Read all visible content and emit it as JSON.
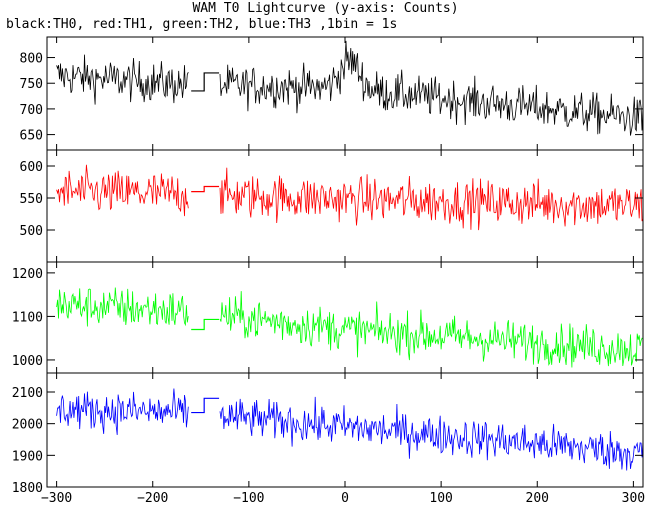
{
  "chart_data": {
    "type": "line",
    "title": "WAM T0 Lightcurve (y-axis: Counts)",
    "subtitle": "black:TH0, red:TH1, green:TH2, blue:TH3 ,1bin = 1s",
    "x_range": [
      -310,
      310
    ],
    "x_ticks": [
      -300,
      -200,
      -100,
      0,
      100,
      200,
      300
    ],
    "gap": {
      "from": -163,
      "to": -130
    },
    "series": [
      {
        "name": "TH0",
        "color": "#000000",
        "ylim": [
          620,
          840
        ],
        "y_ticks": [
          650,
          700,
          750,
          800
        ],
        "trend": [
          [
            -300,
            765
          ],
          [
            -170,
            748
          ],
          [
            0,
            740
          ],
          [
            300,
            683
          ]
        ],
        "gap_levels": [
          735,
          770
        ],
        "noise": 28,
        "bump": {
          "x": 5,
          "height": 55,
          "width": 10
        }
      },
      {
        "name": "TH1",
        "color": "#ff0000",
        "ylim": [
          450,
          625
        ],
        "y_ticks": [
          500,
          550,
          600
        ],
        "trend": [
          [
            -300,
            560
          ],
          [
            -170,
            556
          ],
          [
            0,
            548
          ],
          [
            300,
            538
          ]
        ],
        "gap_levels": [
          560,
          568
        ],
        "noise": 25
      },
      {
        "name": "TH2",
        "color": "#00ff00",
        "ylim": [
          970,
          1225
        ],
        "y_ticks": [
          1000,
          1100,
          1200
        ],
        "trend": [
          [
            -300,
            1128
          ],
          [
            -170,
            1112
          ],
          [
            0,
            1070
          ],
          [
            300,
            1025
          ]
        ],
        "gap_levels": [
          1070,
          1093
        ],
        "noise": 34
      },
      {
        "name": "TH3",
        "color": "#0000ff",
        "ylim": [
          1800,
          2160
        ],
        "y_ticks": [
          1800,
          1900,
          2000,
          2100
        ],
        "trend": [
          [
            -300,
            2045
          ],
          [
            -170,
            2035
          ],
          [
            0,
            1990
          ],
          [
            300,
            1910
          ]
        ],
        "gap_levels": [
          2035,
          2080
        ],
        "noise": 44
      }
    ]
  }
}
